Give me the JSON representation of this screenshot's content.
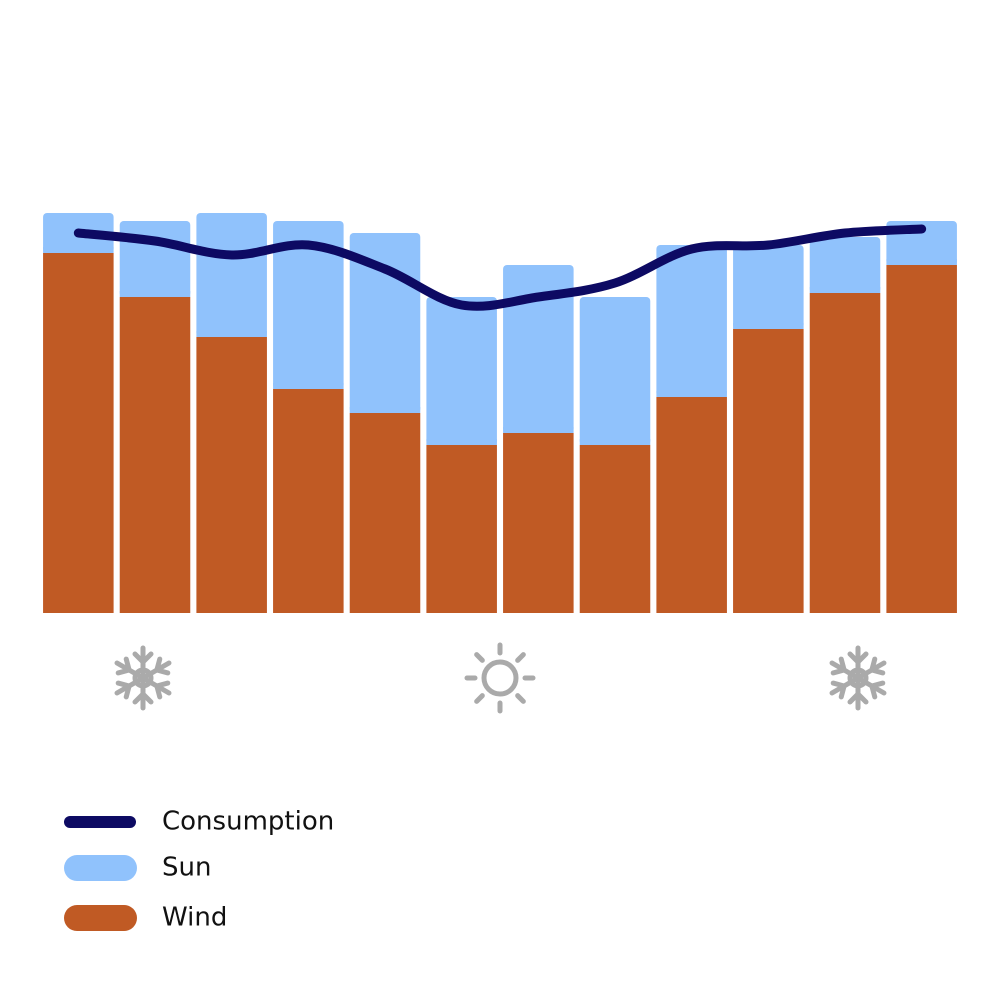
{
  "chart_data": {
    "type": "bar",
    "stacked": true,
    "categories": [
      null,
      null,
      null,
      null,
      null,
      null,
      null,
      null,
      null,
      null,
      null,
      null
    ],
    "ylim": [
      0,
      100
    ],
    "legend": "bottom-left",
    "series": [
      {
        "name": "Consumption",
        "type": "line",
        "color": "#0d0a63",
        "values": [
          95,
          93,
          89.5,
          92,
          86,
          77,
          79,
          82.5,
          91,
          92,
          95,
          96
        ]
      },
      {
        "name": "Sun",
        "type": "bar",
        "color": "#90c2fc",
        "values": [
          10,
          19,
          31,
          42,
          45,
          37,
          42,
          37,
          38,
          21,
          14,
          11
        ]
      },
      {
        "name": "Wind",
        "type": "bar",
        "color": "#c05a24",
        "values": [
          90,
          79,
          69,
          56,
          50,
          42,
          45,
          42,
          54,
          71,
          80,
          87
        ]
      }
    ]
  }
}
